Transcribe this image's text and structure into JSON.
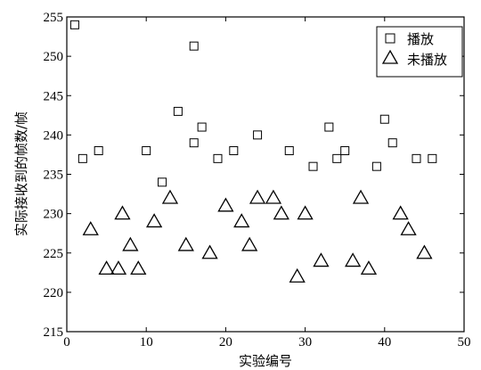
{
  "chart_data": {
    "type": "scatter",
    "title": "",
    "xlabel": "实验编号",
    "ylabel": "实际接收到的帧数/帧",
    "xlim": [
      0,
      50
    ],
    "ylim": [
      215,
      255
    ],
    "xticks": [
      0,
      10,
      20,
      30,
      40,
      50
    ],
    "yticks": [
      215,
      220,
      225,
      230,
      235,
      240,
      245,
      250,
      255
    ],
    "grid": false,
    "legend_position": "top-right",
    "series": [
      {
        "name": "播放",
        "marker": "square",
        "points": [
          [
            1,
            254
          ],
          [
            2,
            237
          ],
          [
            4,
            238
          ],
          [
            10,
            238
          ],
          [
            12,
            234
          ],
          [
            14,
            243
          ],
          [
            16,
            239
          ],
          [
            16,
            251.3
          ],
          [
            17,
            241
          ],
          [
            19,
            237
          ],
          [
            21,
            238
          ],
          [
            24,
            240
          ],
          [
            28,
            238
          ],
          [
            31,
            236
          ],
          [
            33,
            241
          ],
          [
            34,
            237
          ],
          [
            35,
            238
          ],
          [
            39,
            236
          ],
          [
            40,
            242
          ],
          [
            41,
            239
          ],
          [
            44,
            237
          ],
          [
            46,
            237
          ]
        ]
      },
      {
        "name": "未播放",
        "marker": "triangle",
        "points": [
          [
            3,
            228
          ],
          [
            5,
            223
          ],
          [
            6.5,
            223
          ],
          [
            7,
            230
          ],
          [
            8,
            226
          ],
          [
            9,
            223
          ],
          [
            11,
            229
          ],
          [
            13,
            232
          ],
          [
            15,
            226
          ],
          [
            18,
            225
          ],
          [
            20,
            231
          ],
          [
            22,
            229
          ],
          [
            23,
            226
          ],
          [
            24,
            232
          ],
          [
            26,
            232
          ],
          [
            27,
            230
          ],
          [
            29,
            222
          ],
          [
            30,
            230
          ],
          [
            32,
            224
          ],
          [
            36,
            224
          ],
          [
            37,
            232
          ],
          [
            38,
            223
          ],
          [
            42,
            230
          ],
          [
            43,
            228
          ],
          [
            45,
            225
          ]
        ]
      }
    ]
  }
}
